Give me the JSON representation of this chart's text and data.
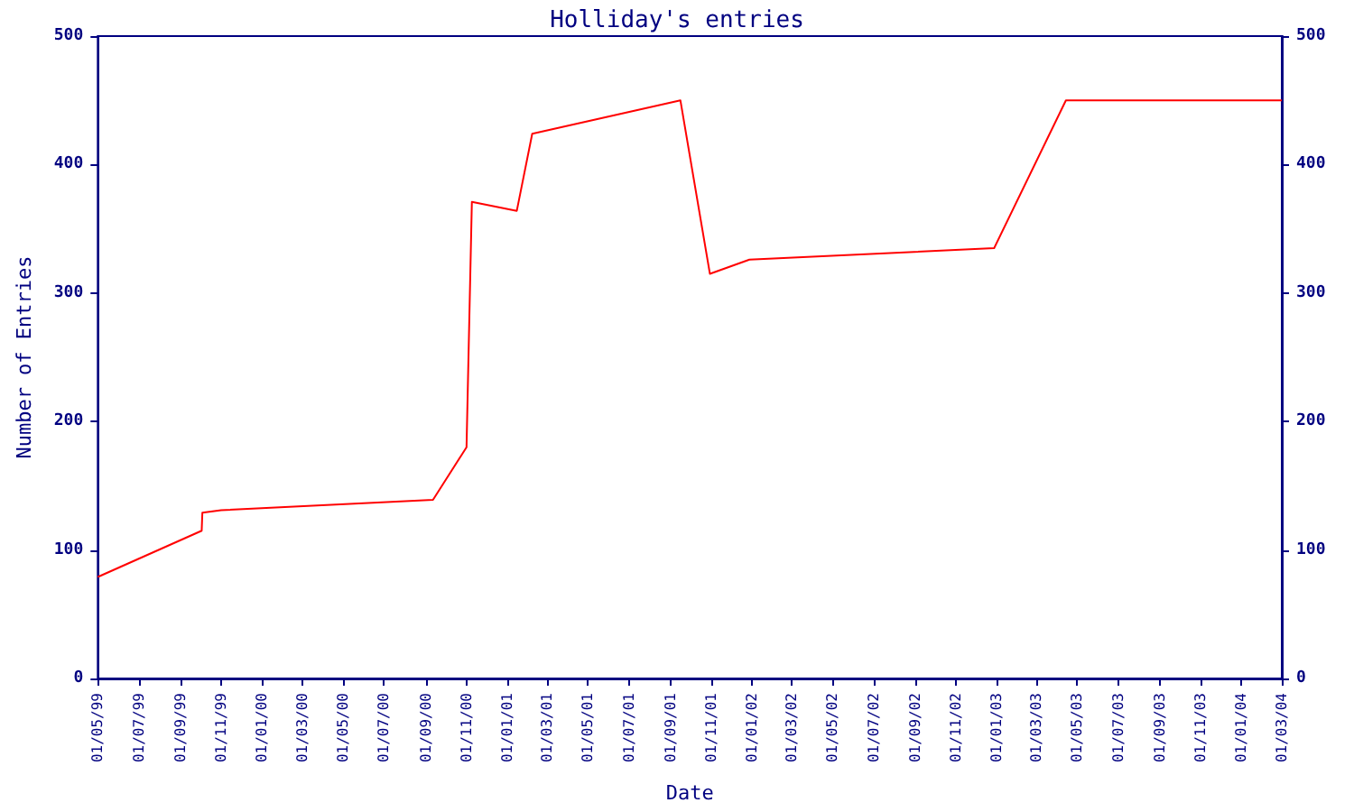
{
  "chart_data": {
    "type": "line",
    "title": "Holliday's entries",
    "xlabel": "Date",
    "ylabel": "Number of Entries",
    "x": [
      "1999-05-01",
      "1999-10-03",
      "1999-10-04",
      "1999-11-01",
      "2000-09-12",
      "2000-11-01",
      "2000-11-09",
      "2001-01-15",
      "2001-02-07",
      "2001-09-16",
      "2001-10-30",
      "2001-12-28",
      "2002-12-28",
      "2003-04-14",
      "2004-03-01"
    ],
    "series": [
      {
        "color": "#ff0000",
        "values": [
          79,
          115,
          129,
          131,
          139,
          180,
          371,
          364,
          424,
          450,
          315,
          326,
          335,
          450,
          450
        ]
      }
    ],
    "xlim": [
      "1999-05-01",
      "2004-03-01"
    ],
    "xticks": [
      {
        "value": "1999-05-01",
        "label": "01/05/99"
      },
      {
        "value": "1999-07-01",
        "label": "01/07/99"
      },
      {
        "value": "1999-09-01",
        "label": "01/09/99"
      },
      {
        "value": "1999-11-01",
        "label": "01/11/99"
      },
      {
        "value": "2000-01-01",
        "label": "01/01/00"
      },
      {
        "value": "2000-03-01",
        "label": "01/03/00"
      },
      {
        "value": "2000-05-01",
        "label": "01/05/00"
      },
      {
        "value": "2000-07-01",
        "label": "01/07/00"
      },
      {
        "value": "2000-09-01",
        "label": "01/09/00"
      },
      {
        "value": "2000-11-01",
        "label": "01/11/00"
      },
      {
        "value": "2001-01-01",
        "label": "01/01/01"
      },
      {
        "value": "2001-03-01",
        "label": "01/03/01"
      },
      {
        "value": "2001-05-01",
        "label": "01/05/01"
      },
      {
        "value": "2001-07-01",
        "label": "01/07/01"
      },
      {
        "value": "2001-09-01",
        "label": "01/09/01"
      },
      {
        "value": "2001-11-01",
        "label": "01/11/01"
      },
      {
        "value": "2002-01-01",
        "label": "01/01/02"
      },
      {
        "value": "2002-03-01",
        "label": "01/03/02"
      },
      {
        "value": "2002-05-01",
        "label": "01/05/02"
      },
      {
        "value": "2002-07-01",
        "label": "01/07/02"
      },
      {
        "value": "2002-09-01",
        "label": "01/09/02"
      },
      {
        "value": "2002-11-01",
        "label": "01/11/02"
      },
      {
        "value": "2003-01-01",
        "label": "01/01/03"
      },
      {
        "value": "2003-03-01",
        "label": "01/03/03"
      },
      {
        "value": "2003-05-01",
        "label": "01/05/03"
      },
      {
        "value": "2003-07-01",
        "label": "01/07/03"
      },
      {
        "value": "2003-09-01",
        "label": "01/09/03"
      },
      {
        "value": "2003-11-01",
        "label": "01/11/03"
      },
      {
        "value": "2004-01-01",
        "label": "01/01/04"
      },
      {
        "value": "2004-03-01",
        "label": "01/03/04"
      }
    ],
    "ylim": [
      0,
      500
    ],
    "yticks": [
      0,
      100,
      200,
      300,
      400,
      500
    ],
    "y2lim": [
      0,
      500
    ],
    "y2ticks": [
      0,
      100,
      200,
      300,
      400,
      500
    ],
    "grid": false,
    "marker": "none",
    "line_style": "solid"
  }
}
